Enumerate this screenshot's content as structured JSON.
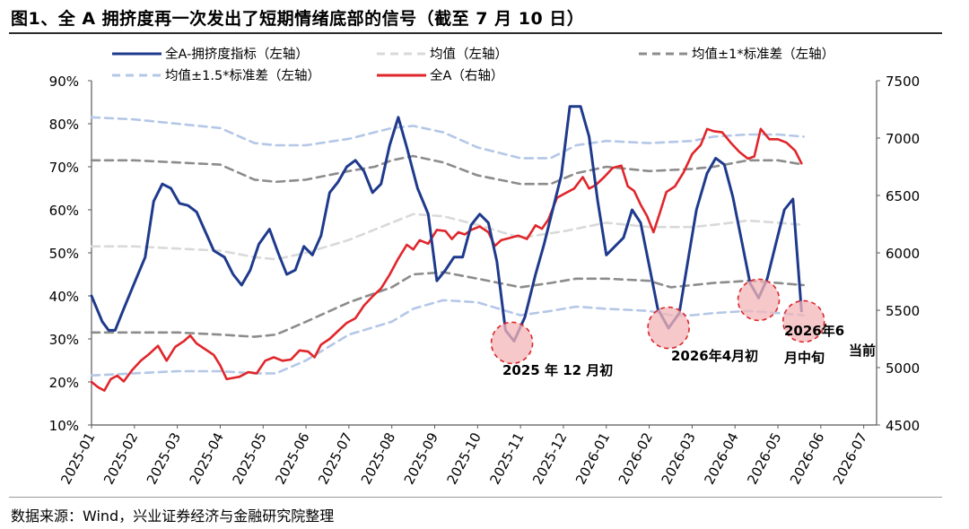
{
  "title": "图1、全 A 拥挤度再一次发出了短期情绪底部的信号（截至 7 月 10 日）",
  "source": "数据来源：Wind，兴业证券经济与金融研究院整理",
  "colors": {
    "crowding": "#1f3a8c",
    "mean": "#d9d9d9",
    "band1": "#8c8c8c",
    "band15": "#b4c7e7",
    "index": "#e0262b",
    "circle_fill": "#f4b6b8",
    "circle_stroke": "#d9262b"
  },
  "chart_data": {
    "type": "line",
    "x_tick_labels": [
      "2025-01",
      "2025-02",
      "2025-03",
      "2025-04",
      "2025-05",
      "2025-06",
      "2025-07",
      "2025-08",
      "2025-09",
      "2025-10",
      "2025-11",
      "2025-12",
      "2026-01",
      "2026-02",
      "2026-03",
      "2026-04",
      "2026-05",
      "2026-06",
      "2026-07"
    ],
    "left_axis": {
      "ylim": [
        10,
        90
      ],
      "ticks": [
        "10%",
        "20%",
        "30%",
        "40%",
        "50%",
        "60%",
        "70%",
        "80%",
        "90%"
      ]
    },
    "right_axis": {
      "ylim": [
        4500,
        7500
      ],
      "ticks": [
        "4500",
        "5000",
        "5500",
        "6000",
        "6500",
        "7000",
        "7500"
      ]
    },
    "x_range": [
      0,
      18.3
    ],
    "legend": {
      "crowding": "全A-拥挤度指标（左轴）",
      "mean": "均值（左轴）",
      "band1": "均值±1*标准差（左轴）",
      "band15": "均值±1.5*标准差（左轴）",
      "index": "全A（右轴）"
    },
    "series": [
      {
        "key": "crowding",
        "name": "全A-拥挤度指标（左轴）",
        "axis": "left",
        "style": "solid",
        "points": [
          [
            0,
            40
          ],
          [
            0.25,
            34
          ],
          [
            0.4,
            32
          ],
          [
            0.55,
            32
          ],
          [
            0.75,
            37
          ],
          [
            1.0,
            43
          ],
          [
            1.25,
            49
          ],
          [
            1.45,
            62
          ],
          [
            1.65,
            66
          ],
          [
            1.85,
            65
          ],
          [
            2.05,
            61.5
          ],
          [
            2.25,
            61
          ],
          [
            2.45,
            59.5
          ],
          [
            2.65,
            55
          ],
          [
            2.85,
            50.5
          ],
          [
            3.1,
            49
          ],
          [
            3.3,
            45
          ],
          [
            3.5,
            42.5
          ],
          [
            3.7,
            46
          ],
          [
            3.9,
            52
          ],
          [
            4.15,
            55.5
          ],
          [
            4.35,
            50
          ],
          [
            4.55,
            45
          ],
          [
            4.75,
            46
          ],
          [
            4.95,
            51.5
          ],
          [
            5.15,
            49.5
          ],
          [
            5.35,
            54
          ],
          [
            5.55,
            64
          ],
          [
            5.75,
            66.5
          ],
          [
            5.95,
            70
          ],
          [
            6.15,
            71.5
          ],
          [
            6.35,
            69
          ],
          [
            6.55,
            64
          ],
          [
            6.75,
            66
          ],
          [
            6.95,
            75
          ],
          [
            7.15,
            81.5
          ],
          [
            7.35,
            74.5
          ],
          [
            7.6,
            65
          ],
          [
            7.85,
            59
          ],
          [
            8.05,
            43.5
          ],
          [
            8.25,
            46
          ],
          [
            8.45,
            49
          ],
          [
            8.65,
            49
          ],
          [
            8.85,
            56.5
          ],
          [
            9.05,
            59
          ],
          [
            9.25,
            57
          ],
          [
            9.45,
            48
          ],
          [
            9.65,
            32
          ],
          [
            9.85,
            29.5
          ],
          [
            10.1,
            35
          ],
          [
            10.35,
            45
          ],
          [
            10.55,
            52
          ],
          [
            10.75,
            60
          ],
          [
            10.95,
            68
          ],
          [
            11.15,
            84
          ],
          [
            11.4,
            84
          ],
          [
            11.6,
            77
          ],
          [
            11.8,
            62
          ],
          [
            12.0,
            49.5
          ],
          [
            12.2,
            51.5
          ],
          [
            12.4,
            53.5
          ],
          [
            12.6,
            60
          ],
          [
            12.8,
            57
          ],
          [
            13.0,
            47
          ],
          [
            13.2,
            37
          ],
          [
            13.45,
            32.5
          ],
          [
            13.7,
            36
          ],
          [
            13.9,
            48
          ],
          [
            14.1,
            60
          ],
          [
            14.35,
            68.5
          ],
          [
            14.55,
            72
          ],
          [
            14.75,
            70.5
          ],
          [
            14.95,
            63
          ],
          [
            15.15,
            53
          ],
          [
            15.35,
            43
          ],
          [
            15.55,
            39.5
          ],
          [
            15.75,
            44
          ],
          [
            15.95,
            52
          ],
          [
            16.15,
            60
          ],
          [
            16.35,
            62.5
          ],
          [
            16.55,
            36.5
          ]
        ]
      },
      {
        "key": "mean",
        "name": "均值（左轴）",
        "axis": "left",
        "style": "dashed",
        "points": [
          [
            0,
            51.5
          ],
          [
            1,
            51.5
          ],
          [
            2,
            51
          ],
          [
            3,
            50.5
          ],
          [
            3.8,
            49
          ],
          [
            4.3,
            48.5
          ],
          [
            5,
            50
          ],
          [
            6,
            53
          ],
          [
            7,
            57
          ],
          [
            7.5,
            59
          ],
          [
            8.2,
            58.5
          ],
          [
            9,
            56.5
          ],
          [
            10,
            53.5
          ],
          [
            11,
            55
          ],
          [
            12,
            57
          ],
          [
            13,
            56
          ],
          [
            14,
            56
          ],
          [
            14.5,
            56.5
          ],
          [
            15.3,
            57.5
          ],
          [
            16,
            57
          ],
          [
            16.6,
            56.5
          ]
        ]
      },
      {
        "key": "band1",
        "name": "均值±1*标准差（左轴）",
        "axis": "left",
        "style": "dashed",
        "points": [
          [
            0,
            71.5
          ],
          [
            1,
            71.5
          ],
          [
            2,
            71
          ],
          [
            3,
            70.5
          ],
          [
            3.8,
            67
          ],
          [
            4.3,
            66.5
          ],
          [
            5,
            67
          ],
          [
            6,
            69
          ],
          [
            6.6,
            70
          ],
          [
            7,
            71.5
          ],
          [
            7.5,
            72.5
          ],
          [
            8.2,
            71
          ],
          [
            9,
            68
          ],
          [
            10,
            66
          ],
          [
            10.7,
            66
          ],
          [
            11.3,
            68.5
          ],
          [
            12,
            70
          ],
          [
            13,
            69
          ],
          [
            14,
            69.5
          ],
          [
            14.5,
            70
          ],
          [
            15.3,
            71.5
          ],
          [
            16,
            71.5
          ],
          [
            16.6,
            70.5
          ]
        ]
      },
      {
        "key": "band1_lower",
        "name": "",
        "axis": "left",
        "style": "dashed",
        "points": [
          [
            0,
            31.5
          ],
          [
            1,
            31.5
          ],
          [
            2,
            31.5
          ],
          [
            3,
            31
          ],
          [
            3.8,
            30.5
          ],
          [
            4.3,
            31
          ],
          [
            5,
            34
          ],
          [
            6,
            38.5
          ],
          [
            7,
            42
          ],
          [
            7.5,
            45
          ],
          [
            8.2,
            45.5
          ],
          [
            9,
            44
          ],
          [
            10,
            42
          ],
          [
            10.7,
            43
          ],
          [
            11.3,
            44
          ],
          [
            12,
            44
          ],
          [
            13,
            43.5
          ],
          [
            13.5,
            42
          ],
          [
            14,
            42.5
          ],
          [
            14.5,
            43
          ],
          [
            15.3,
            43.5
          ],
          [
            16,
            43
          ],
          [
            16.6,
            42.5
          ]
        ]
      },
      {
        "key": "band15",
        "name": "均值±1.5*标准差（左轴）",
        "axis": "left",
        "style": "dashed",
        "points": [
          [
            0,
            81.5
          ],
          [
            1,
            81
          ],
          [
            2,
            80
          ],
          [
            3,
            79
          ],
          [
            3.8,
            75.5
          ],
          [
            4.3,
            75
          ],
          [
            5,
            75
          ],
          [
            6,
            76.5
          ],
          [
            7,
            79
          ],
          [
            7.5,
            79.5
          ],
          [
            8.2,
            78
          ],
          [
            9,
            74.5
          ],
          [
            10,
            72
          ],
          [
            10.7,
            72
          ],
          [
            11.3,
            75
          ],
          [
            12,
            76
          ],
          [
            13,
            75.5
          ],
          [
            14,
            76
          ],
          [
            14.5,
            77
          ],
          [
            15.3,
            77.5
          ],
          [
            16,
            77.5
          ],
          [
            16.6,
            77
          ]
        ]
      },
      {
        "key": "band15_lower",
        "name": "",
        "axis": "left",
        "style": "dashed",
        "points": [
          [
            0,
            21.5
          ],
          [
            1,
            22
          ],
          [
            2,
            22.5
          ],
          [
            3,
            22.5
          ],
          [
            3.8,
            22
          ],
          [
            4.3,
            22
          ],
          [
            5,
            25
          ],
          [
            6,
            31
          ],
          [
            7,
            34
          ],
          [
            7.5,
            37
          ],
          [
            8.2,
            39
          ],
          [
            9,
            38.5
          ],
          [
            10,
            35.5
          ],
          [
            10.7,
            36.5
          ],
          [
            11.3,
            37.5
          ],
          [
            12,
            37
          ],
          [
            13,
            36.5
          ],
          [
            13.5,
            35.5
          ],
          [
            14,
            35.5
          ],
          [
            14.5,
            36
          ],
          [
            15.3,
            36.5
          ],
          [
            16,
            36
          ],
          [
            16.6,
            35.5
          ]
        ]
      },
      {
        "key": "index",
        "name": "全A（右轴）",
        "axis": "right",
        "style": "solid",
        "points": [
          [
            0,
            4875
          ],
          [
            0.15,
            4830
          ],
          [
            0.3,
            4800
          ],
          [
            0.45,
            4900
          ],
          [
            0.6,
            4930
          ],
          [
            0.75,
            4880
          ],
          [
            0.95,
            4980
          ],
          [
            1.15,
            5060
          ],
          [
            1.35,
            5120
          ],
          [
            1.55,
            5190
          ],
          [
            1.75,
            5060
          ],
          [
            1.95,
            5180
          ],
          [
            2.15,
            5230
          ],
          [
            2.3,
            5280
          ],
          [
            2.45,
            5210
          ],
          [
            2.65,
            5160
          ],
          [
            2.85,
            5110
          ],
          [
            3.0,
            5020
          ],
          [
            3.15,
            4900
          ],
          [
            3.3,
            4910
          ],
          [
            3.45,
            4920
          ],
          [
            3.65,
            4960
          ],
          [
            3.85,
            4950
          ],
          [
            4.05,
            5060
          ],
          [
            4.25,
            5090
          ],
          [
            4.45,
            5060
          ],
          [
            4.65,
            5070
          ],
          [
            4.85,
            5150
          ],
          [
            5.05,
            5140
          ],
          [
            5.2,
            5090
          ],
          [
            5.35,
            5200
          ],
          [
            5.55,
            5250
          ],
          [
            5.75,
            5320
          ],
          [
            5.95,
            5390
          ],
          [
            6.15,
            5430
          ],
          [
            6.35,
            5540
          ],
          [
            6.55,
            5620
          ],
          [
            6.75,
            5690
          ],
          [
            6.95,
            5810
          ],
          [
            7.15,
            5950
          ],
          [
            7.35,
            6070
          ],
          [
            7.5,
            6030
          ],
          [
            7.65,
            6110
          ],
          [
            7.85,
            6080
          ],
          [
            8.05,
            6200
          ],
          [
            8.25,
            6190
          ],
          [
            8.4,
            6120
          ],
          [
            8.55,
            6180
          ],
          [
            8.7,
            6160
          ],
          [
            8.85,
            6200
          ],
          [
            9.05,
            6230
          ],
          [
            9.25,
            6180
          ],
          [
            9.4,
            6060
          ],
          [
            9.55,
            6110
          ],
          [
            9.75,
            6130
          ],
          [
            9.95,
            6150
          ],
          [
            10.15,
            6120
          ],
          [
            10.35,
            6240
          ],
          [
            10.5,
            6210
          ],
          [
            10.65,
            6290
          ],
          [
            10.85,
            6480
          ],
          [
            11.05,
            6520
          ],
          [
            11.25,
            6560
          ],
          [
            11.45,
            6660
          ],
          [
            11.6,
            6560
          ],
          [
            11.75,
            6590
          ],
          [
            11.95,
            6660
          ],
          [
            12.15,
            6740
          ],
          [
            12.35,
            6760
          ],
          [
            12.5,
            6580
          ],
          [
            12.65,
            6540
          ],
          [
            12.8,
            6420
          ],
          [
            12.95,
            6320
          ],
          [
            13.1,
            6180
          ],
          [
            13.25,
            6350
          ],
          [
            13.4,
            6530
          ],
          [
            13.6,
            6580
          ],
          [
            13.8,
            6700
          ],
          [
            14.0,
            6860
          ],
          [
            14.2,
            6940
          ],
          [
            14.35,
            7080
          ],
          [
            14.5,
            7060
          ],
          [
            14.7,
            7050
          ],
          [
            14.9,
            6960
          ],
          [
            15.1,
            6880
          ],
          [
            15.3,
            6820
          ],
          [
            15.45,
            6840
          ],
          [
            15.6,
            7080
          ],
          [
            15.8,
            6990
          ],
          [
            16.0,
            6990
          ],
          [
            16.2,
            6960
          ],
          [
            16.4,
            6890
          ],
          [
            16.55,
            6780
          ]
        ]
      }
    ],
    "annotations": [
      {
        "label": "2025 年 12 月初",
        "x": 9.8,
        "y": 29.5
      },
      {
        "label": "2026年4月初",
        "x": 13.45,
        "y": 33
      },
      {
        "label": "2026年6 月中旬",
        "x": 15.55,
        "y": 39.5
      },
      {
        "label": "当前",
        "x": 16.6,
        "y": 34.5
      }
    ]
  }
}
